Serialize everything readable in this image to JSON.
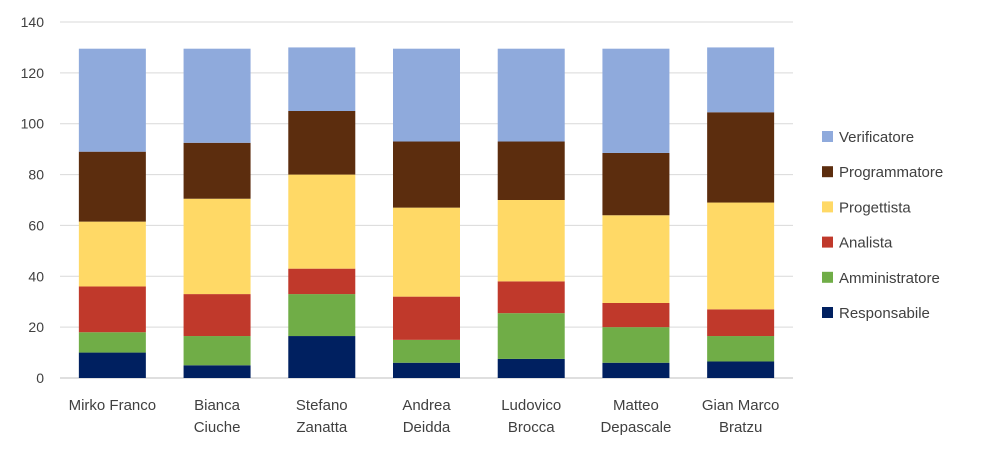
{
  "chart_data": {
    "type": "bar",
    "stacked": true,
    "categories": [
      [
        "Mirko Franco"
      ],
      [
        "Bianca",
        "Ciuche"
      ],
      [
        "Stefano",
        "Zanatta"
      ],
      [
        "Andrea",
        "Deidda"
      ],
      [
        "Ludovico",
        "Brocca"
      ],
      [
        "Matteo",
        "Depascale"
      ],
      [
        "Gian Marco",
        "Bratzu"
      ]
    ],
    "series": [
      {
        "name": "Responsabile",
        "color": "#002060",
        "values": [
          10,
          5,
          16.5,
          6,
          7.5,
          6,
          6.5
        ]
      },
      {
        "name": "Amministratore",
        "color": "#70AD47",
        "values": [
          8,
          11.5,
          16.5,
          9,
          18,
          14,
          10
        ]
      },
      {
        "name": "Analista",
        "color": "#C0392B",
        "values": [
          18,
          16.5,
          10,
          17,
          12.5,
          9.5,
          10.5
        ]
      },
      {
        "name": "Progettista",
        "color": "#FFD966",
        "values": [
          25.5,
          37.5,
          37,
          35,
          32,
          34.5,
          42
        ]
      },
      {
        "name": "Programmatore",
        "color": "#5C2D0E",
        "values": [
          27.5,
          22,
          25,
          26,
          23,
          24.5,
          35.5
        ]
      },
      {
        "name": "Verificatore",
        "color": "#8FAADC",
        "values": [
          40.5,
          37,
          25,
          36.5,
          36.5,
          41,
          25.5
        ]
      }
    ],
    "yticks": [
      "0",
      "20",
      "40",
      "60",
      "80",
      "100",
      "120",
      "140"
    ],
    "ylim": [
      0,
      140
    ],
    "grid": true,
    "legend_position": "right"
  }
}
